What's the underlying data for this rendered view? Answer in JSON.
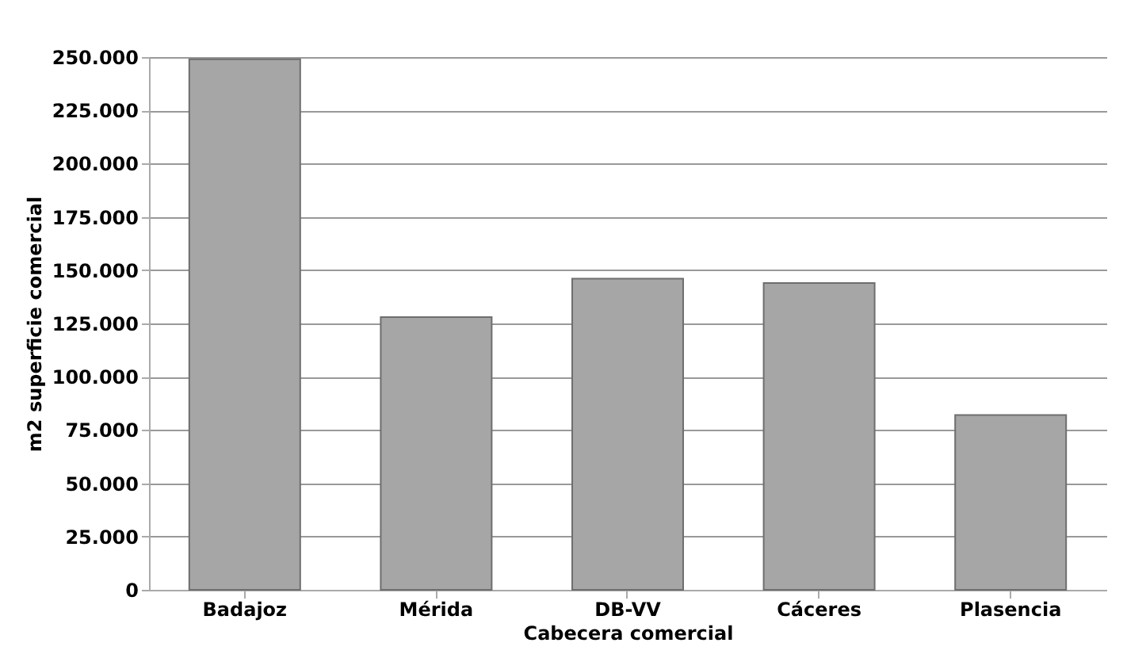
{
  "chart_data": {
    "type": "bar",
    "xlabel": "Cabecera comercial",
    "ylabel": "m2  superficie comercial",
    "categories": [
      "Badajoz",
      "Mérida",
      "DB-VV",
      "Cáceres",
      "Plasencia"
    ],
    "values": [
      249000,
      128000,
      146000,
      144000,
      82000
    ],
    "color": "#a6a6a6",
    "ylim": [
      0,
      250000
    ],
    "yticks": [
      {
        "value": 0,
        "label": "0"
      },
      {
        "value": 25000,
        "label": "25.000"
      },
      {
        "value": 50000,
        "label": "50.000"
      },
      {
        "value": 75000,
        "label": "75.000"
      },
      {
        "value": 100000,
        "label": "100.000"
      },
      {
        "value": 125000,
        "label": "125.000"
      },
      {
        "value": 150000,
        "label": "150.000"
      },
      {
        "value": 175000,
        "label": "175.000"
      },
      {
        "value": 200000,
        "label": "200.000"
      },
      {
        "value": 225000,
        "label": "225.000"
      },
      {
        "value": 250000,
        "label": "250.000"
      }
    ],
    "grid": "y"
  }
}
